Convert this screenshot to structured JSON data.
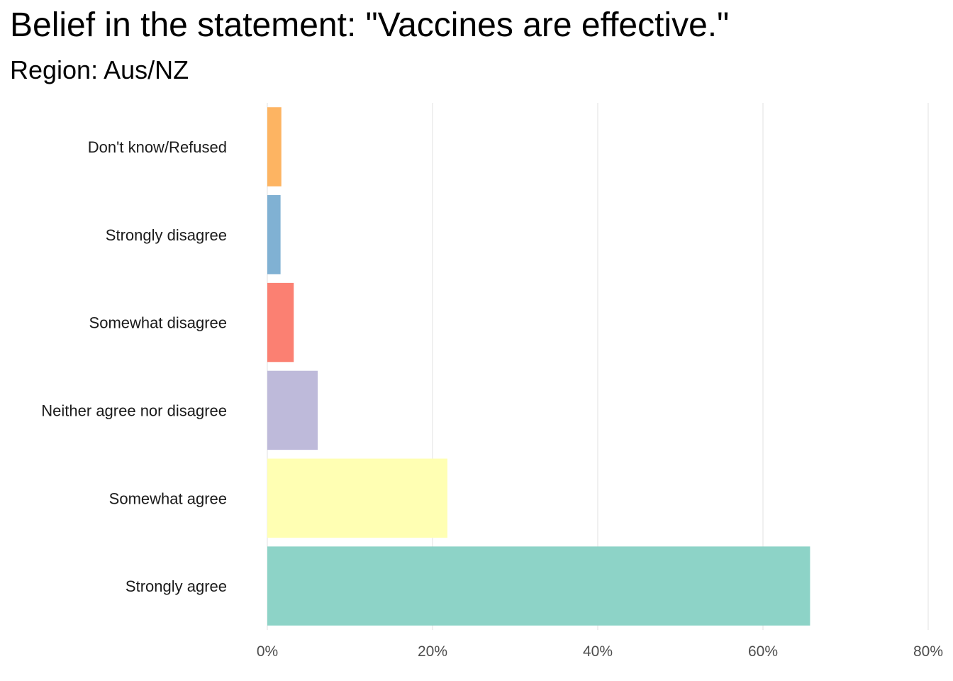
{
  "chart_data": {
    "type": "bar",
    "orientation": "horizontal",
    "title": "Belief in the statement: \"Vaccines are effective.\"",
    "subtitle": "Region: Aus/NZ",
    "xlabel": "",
    "ylabel": "",
    "xlim": [
      0,
      80
    ],
    "x_ticks": [
      "0%",
      "20%",
      "40%",
      "60%",
      "80%"
    ],
    "x_tick_values": [
      0,
      20,
      40,
      60,
      80
    ],
    "grid": "vertical",
    "legend": "none",
    "categories": [
      "Don't know/Refused",
      "Strongly disagree",
      "Somewhat disagree",
      "Neither agree nor disagree",
      "Somewhat agree",
      "Strongly agree"
    ],
    "values": [
      1.7,
      1.6,
      3.2,
      6.1,
      21.8,
      65.7
    ],
    "colors": [
      "#FDB462",
      "#80B1D3",
      "#FB8072",
      "#BEBADA",
      "#FFFFB3",
      "#8DD3C7"
    ]
  }
}
